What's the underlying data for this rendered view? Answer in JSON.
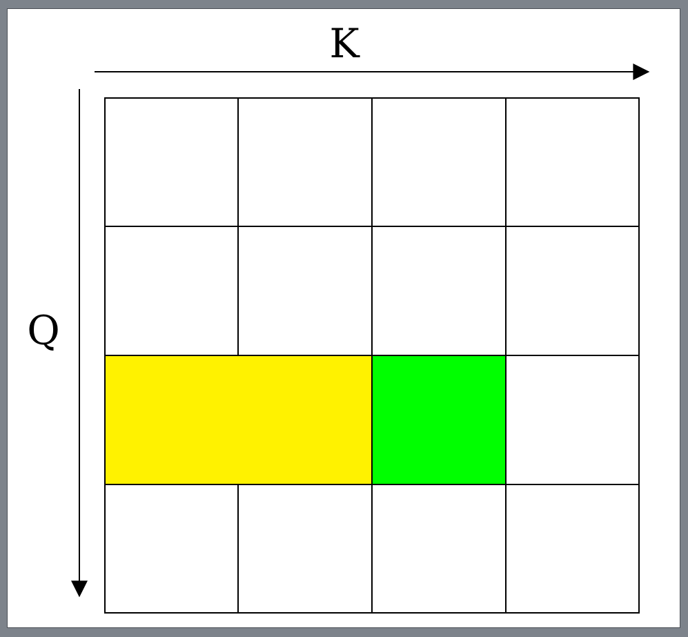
{
  "labels": {
    "k_axis": "K",
    "q_axis": "Q"
  },
  "grid": {
    "rows": 4,
    "cols": 4,
    "highlight_row": 3,
    "yellow_cols": [
      1,
      2
    ],
    "green_col": 3
  },
  "colors": {
    "page_background": "#7d838b",
    "panel": "#ffffff",
    "yellow": "#fff200",
    "green": "#00ff00",
    "line": "#000000"
  }
}
